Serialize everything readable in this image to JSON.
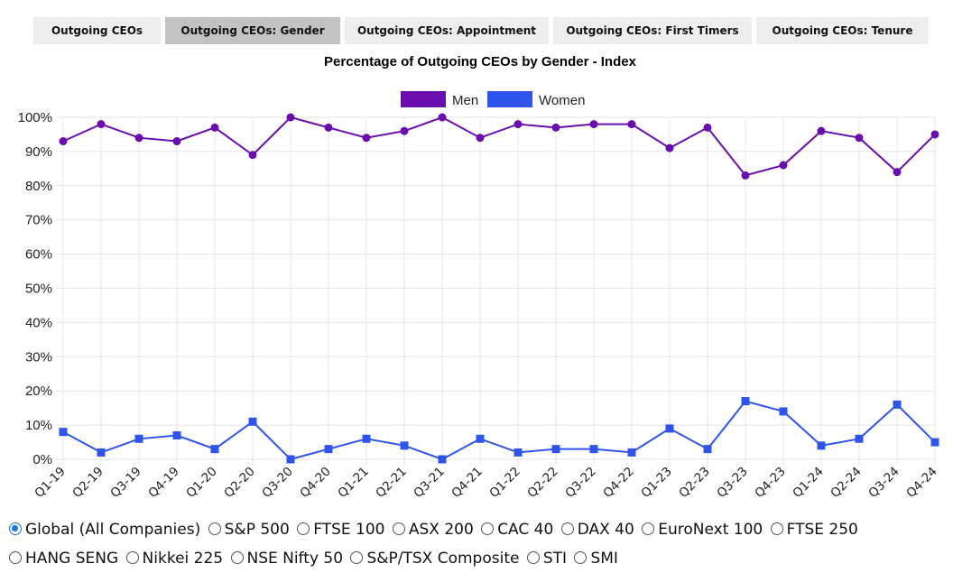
{
  "tabs": [
    {
      "label": "Outgoing CEOs",
      "active": false
    },
    {
      "label": "Outgoing CEOs: Gender",
      "active": true
    },
    {
      "label": "Outgoing CEOs: Appointment",
      "active": false
    },
    {
      "label": "Outgoing CEOs: First Timers",
      "active": false
    },
    {
      "label": "Outgoing CEOs: Tenure",
      "active": false
    }
  ],
  "chart_data": {
    "type": "line",
    "title": "Percentage of Outgoing CEOs by Gender - Index",
    "xlabel": "",
    "ylabel": "",
    "categories": [
      "Q1-19",
      "Q2-19",
      "Q3-19",
      "Q4-19",
      "Q1-20",
      "Q2-20",
      "Q3-20",
      "Q4-20",
      "Q1-21",
      "Q2-21",
      "Q3-21",
      "Q4-21",
      "Q1-22",
      "Q2-22",
      "Q3-22",
      "Q4-22",
      "Q1-23",
      "Q2-23",
      "Q3-23",
      "Q4-23",
      "Q1-24",
      "Q2-24",
      "Q3-24",
      "Q4-24"
    ],
    "series": [
      {
        "name": "Men",
        "color": "#6a0dad",
        "marker": "circle",
        "values": [
          93,
          98,
          94,
          93,
          97,
          89,
          100,
          97,
          94,
          96,
          100,
          94,
          98,
          97,
          98,
          98,
          91,
          97,
          83,
          86,
          96,
          94,
          84,
          95
        ]
      },
      {
        "name": "Women",
        "color": "#2f54eb",
        "marker": "square",
        "values": [
          8,
          2,
          6,
          7,
          3,
          11,
          0,
          3,
          6,
          4,
          0,
          6,
          2,
          3,
          3,
          2,
          9,
          3,
          17,
          14,
          4,
          6,
          16,
          5
        ]
      }
    ],
    "ylim": [
      0,
      100
    ],
    "yticks": [
      "0%",
      "10%",
      "20%",
      "30%",
      "40%",
      "50%",
      "60%",
      "70%",
      "80%",
      "90%",
      "100%"
    ],
    "grid": true,
    "legend": "top-center"
  },
  "regions": {
    "selected": "Global (All Companies)",
    "options": [
      "Global (All Companies)",
      "S&P 500",
      "FTSE 100",
      "ASX 200",
      "CAC 40",
      "DAX 40",
      "EuroNext 100",
      "FTSE 250",
      "HANG SENG",
      "Nikkei 225",
      "NSE Nifty 50",
      "S&P/TSX Composite",
      "STI",
      "SMI"
    ]
  }
}
